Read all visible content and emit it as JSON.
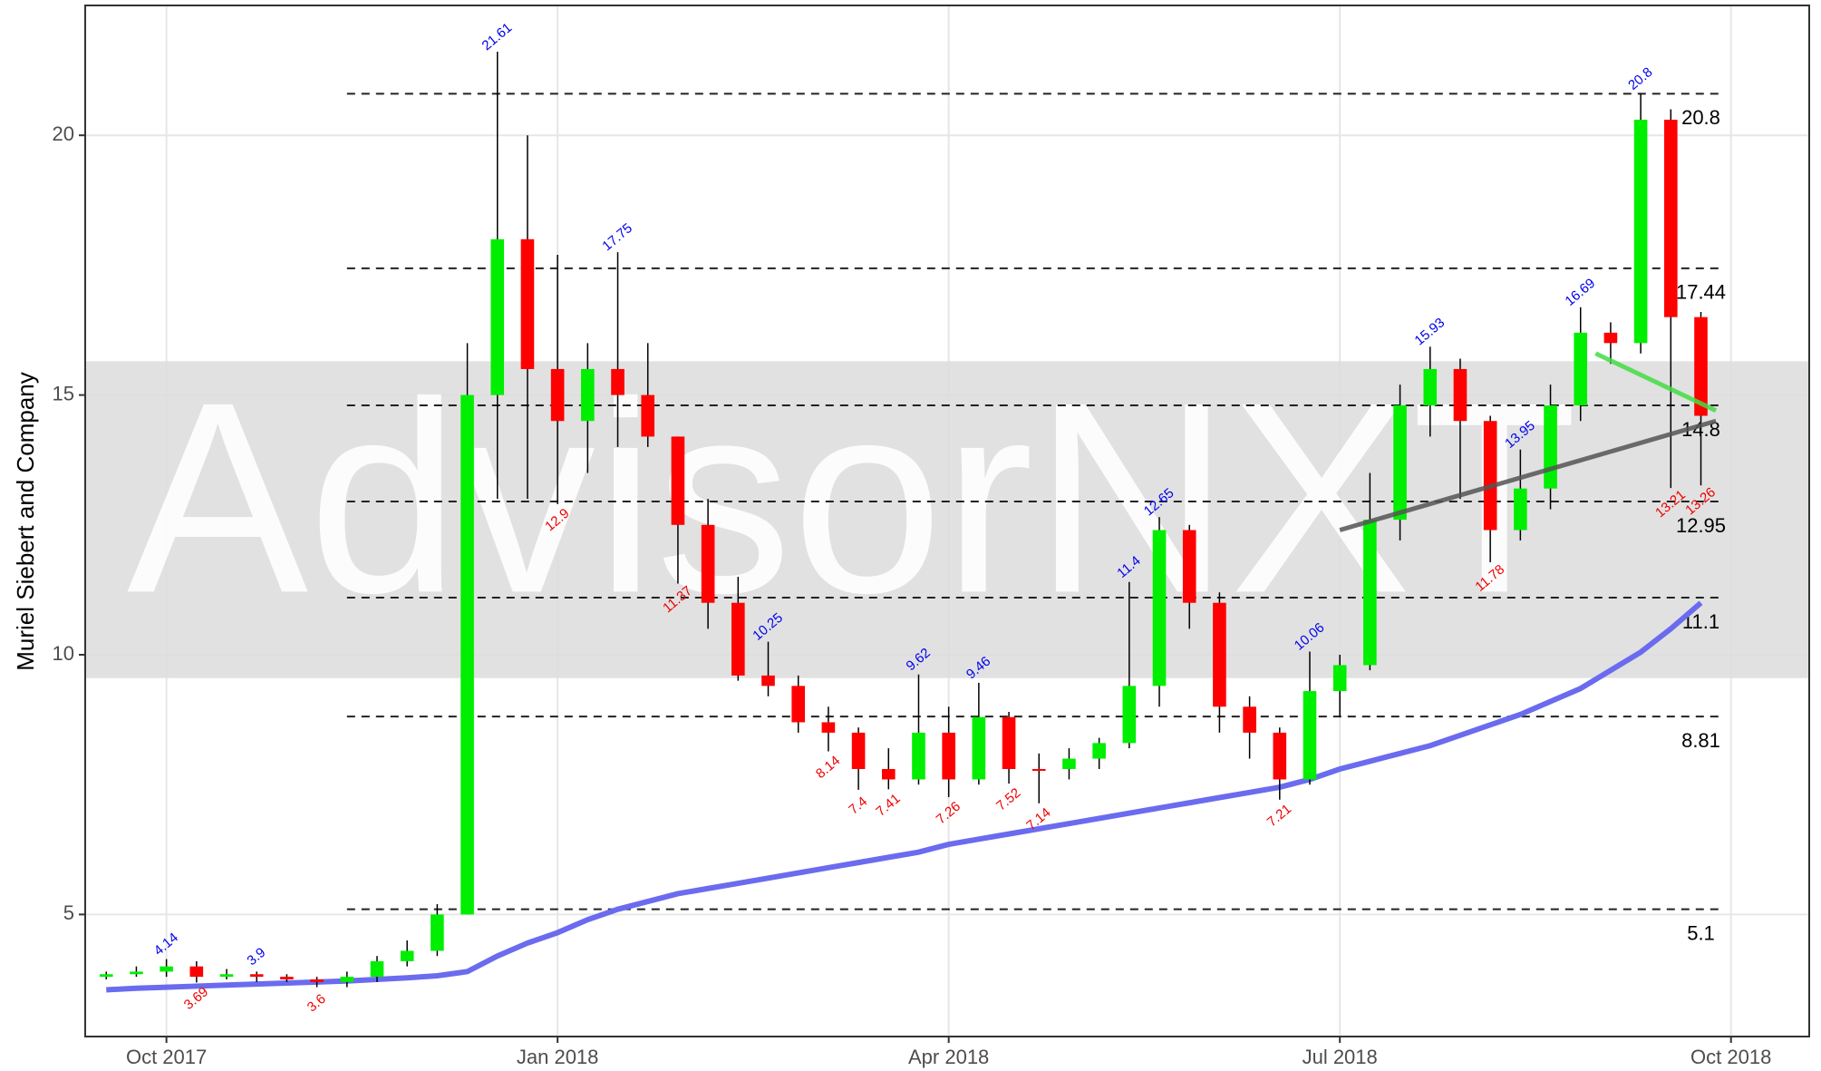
{
  "chart_data": {
    "type": "candlestick",
    "ylabel": "Muriel Siebert and Company",
    "watermark": "AdvisorNXT",
    "xlim": [
      -0.7,
      56.6
    ],
    "xticks": [
      {
        "value": 2,
        "label": "Oct 2017"
      },
      {
        "value": 15,
        "label": "Jan 2018"
      },
      {
        "value": 28,
        "label": "Apr 2018"
      },
      {
        "value": 41,
        "label": "Jul 2018"
      },
      {
        "value": 54,
        "label": "Oct 2018"
      }
    ],
    "ylim": [
      2.65,
      22.5
    ],
    "yticks": [
      5,
      10,
      15,
      20
    ],
    "grid": true,
    "up_color": "#00ee00",
    "down_color": "#ff0000",
    "ma_color": "#6b6bef",
    "open": [
      3.8,
      3.85,
      3.9,
      4.0,
      3.8,
      3.85,
      3.8,
      3.75,
      3.7,
      3.8,
      4.1,
      4.3,
      5.0,
      15,
      18,
      15.5,
      14.5,
      15.5,
      15,
      14.2,
      12.5,
      11,
      9.6,
      9.4,
      8.7,
      8.5,
      7.8,
      7.6,
      8.5,
      7.6,
      8.8,
      7.8,
      7.8,
      8.0,
      8.3,
      9.4,
      12.4,
      11,
      9.0,
      8.5,
      7.6,
      9.3,
      9.8,
      12.6,
      14.8,
      15.5,
      14.5,
      12.4,
      13.2,
      14.8,
      16.2,
      16.0,
      20.3,
      16.5
    ],
    "high": [
      3.9,
      4.0,
      4.14,
      4.1,
      3.95,
      3.9,
      3.85,
      3.8,
      3.9,
      4.2,
      4.5,
      5.2,
      16,
      21.61,
      20,
      17.7,
      16,
      17.75,
      16,
      14.2,
      13,
      11.5,
      10.25,
      9.6,
      9.0,
      8.6,
      8.2,
      9.62,
      9.0,
      9.46,
      8.9,
      8.1,
      8.2,
      8.4,
      11.4,
      12.65,
      12.5,
      11.2,
      9.2,
      8.6,
      10.06,
      10.0,
      13.5,
      15.2,
      15.93,
      15.7,
      14.6,
      13.95,
      15.2,
      16.69,
      16.4,
      20.8,
      20.5,
      16.6
    ],
    "low": [
      3.75,
      3.8,
      3.8,
      3.69,
      3.75,
      3.7,
      3.7,
      3.6,
      3.6,
      3.7,
      4.0,
      4.2,
      5.0,
      13,
      13,
      12.9,
      13.5,
      14,
      14,
      11.37,
      10.5,
      9.5,
      9.2,
      8.5,
      8.14,
      7.4,
      7.41,
      7.5,
      7.26,
      7.5,
      7.52,
      7.14,
      7.6,
      7.8,
      8.2,
      9.0,
      10.5,
      8.5,
      8.0,
      7.21,
      7.5,
      8.8,
      9.7,
      12.2,
      14.2,
      13.0,
      11.78,
      12.2,
      12.8,
      14.5,
      15.6,
      15.8,
      13.21,
      13.26
    ],
    "close": [
      3.85,
      3.9,
      4.0,
      3.8,
      3.85,
      3.8,
      3.75,
      3.7,
      3.8,
      4.1,
      4.3,
      5.0,
      15,
      18,
      15.5,
      14.5,
      15.5,
      15,
      14.2,
      12.5,
      11,
      9.6,
      9.4,
      8.7,
      8.5,
      7.8,
      7.6,
      8.5,
      7.6,
      8.8,
      7.8,
      7.8,
      8.0,
      8.3,
      9.4,
      12.4,
      11,
      9.0,
      8.5,
      7.6,
      9.3,
      9.8,
      12.6,
      14.8,
      15.5,
      14.5,
      12.4,
      13.2,
      14.8,
      16.2,
      16.0,
      20.3,
      16.5,
      14.6
    ],
    "moving_average": [
      3.55,
      3.58,
      3.6,
      3.62,
      3.64,
      3.66,
      3.68,
      3.7,
      3.72,
      3.75,
      3.78,
      3.82,
      3.9,
      4.2,
      4.45,
      4.65,
      4.9,
      5.1,
      5.25,
      5.4,
      5.5,
      5.6,
      5.7,
      5.8,
      5.9,
      6.0,
      6.1,
      6.2,
      6.35,
      6.45,
      6.55,
      6.65,
      6.75,
      6.85,
      6.95,
      7.05,
      7.15,
      7.25,
      7.35,
      7.45,
      7.6,
      7.8,
      7.95,
      8.1,
      8.25,
      8.45,
      8.65,
      8.85,
      9.1,
      9.35,
      9.7,
      10.05,
      10.5,
      11.0
    ],
    "levels": [
      20.8,
      17.44,
      14.8,
      12.95,
      11.1,
      8.81,
      5.1
    ],
    "peaks": [
      {
        "x": 2,
        "value": 4.14
      },
      {
        "x": 5,
        "value": 3.9
      },
      {
        "x": 13,
        "value": 21.61
      },
      {
        "x": 17,
        "value": 17.75
      },
      {
        "x": 22,
        "value": 10.25
      },
      {
        "x": 27,
        "value": 9.62
      },
      {
        "x": 29,
        "value": 9.46
      },
      {
        "x": 34,
        "value": 11.4
      },
      {
        "x": 35,
        "value": 12.65
      },
      {
        "x": 40,
        "value": 10.06
      },
      {
        "x": 44,
        "value": 15.93
      },
      {
        "x": 47,
        "value": 13.95
      },
      {
        "x": 49,
        "value": 16.69
      },
      {
        "x": 51,
        "value": 20.8
      }
    ],
    "troughs": [
      {
        "x": 3,
        "value": 3.69
      },
      {
        "x": 7,
        "value": 3.6
      },
      {
        "x": 15,
        "value": 12.9
      },
      {
        "x": 19,
        "value": 11.37
      },
      {
        "x": 24,
        "value": 8.14
      },
      {
        "x": 25,
        "value": 7.4
      },
      {
        "x": 26,
        "value": 7.41
      },
      {
        "x": 28,
        "value": 7.26
      },
      {
        "x": 30,
        "value": 7.52
      },
      {
        "x": 31,
        "value": 7.14
      },
      {
        "x": 39,
        "value": 7.21
      },
      {
        "x": 46,
        "value": 11.78
      },
      {
        "x": 52,
        "value": 13.21
      },
      {
        "x": 53,
        "value": 13.26
      }
    ],
    "trendlines": [
      {
        "color": "#555555",
        "x": [
          41,
          53.5
        ],
        "values": [
          12.4,
          14.5
        ]
      },
      {
        "color": "#44dd44",
        "x": [
          49.5,
          53.5
        ],
        "values": [
          15.8,
          14.7
        ]
      }
    ]
  }
}
